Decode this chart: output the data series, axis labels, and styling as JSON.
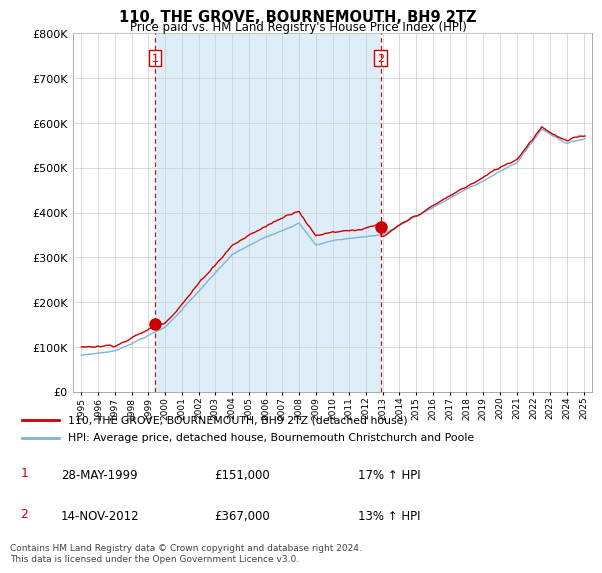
{
  "title": "110, THE GROVE, BOURNEMOUTH, BH9 2TZ",
  "subtitle": "Price paid vs. HM Land Registry's House Price Index (HPI)",
  "legend_line1": "110, THE GROVE, BOURNEMOUTH, BH9 2TZ (detached house)",
  "legend_line2": "HPI: Average price, detached house, Bournemouth Christchurch and Poole",
  "table_rows": [
    {
      "num": "1",
      "date": "28-MAY-1999",
      "price": "£151,000",
      "hpi": "17% ↑ HPI"
    },
    {
      "num": "2",
      "date": "14-NOV-2012",
      "price": "£367,000",
      "hpi": "13% ↑ HPI"
    }
  ],
  "footnote": "Contains HM Land Registry data © Crown copyright and database right 2024.\nThis data is licensed under the Open Government Licence v3.0.",
  "sale_line_color": "#cc0000",
  "hpi_line_color": "#7fb3d3",
  "shade_color": "#ddeef8",
  "dashed_line_color": "#cc0000",
  "marker_color": "#cc0000",
  "sale1_year": 1999.41,
  "sale1_price": 151000,
  "sale2_year": 2012.87,
  "sale2_price": 367000,
  "ylim": [
    0,
    800000
  ],
  "yticks": [
    0,
    100000,
    200000,
    300000,
    400000,
    500000,
    600000,
    700000,
    800000
  ],
  "xlim_start": 1994.5,
  "xlim_end": 2025.5,
  "background_color": "#ffffff",
  "grid_color": "#cccccc"
}
